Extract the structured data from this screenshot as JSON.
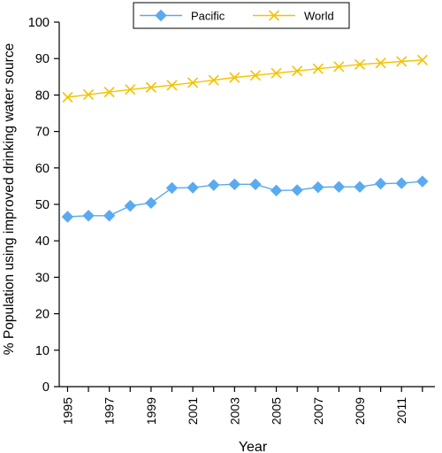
{
  "chart_data": {
    "type": "line",
    "title": "",
    "xlabel": "Year",
    "ylabel": "% Population using improved drinking water source",
    "xlim": [
      1994.6,
      2012.6
    ],
    "ylim": [
      0,
      100
    ],
    "yticks": [
      0,
      10,
      20,
      30,
      40,
      50,
      60,
      70,
      80,
      90,
      100
    ],
    "xticks": [
      1995,
      1997,
      1999,
      2001,
      2003,
      2005,
      2007,
      2009,
      2011
    ],
    "grid": false,
    "legend_position": "top-center",
    "x": [
      1995,
      1996,
      1997,
      1998,
      1999,
      2000,
      2001,
      2002,
      2003,
      2004,
      2005,
      2006,
      2007,
      2008,
      2009,
      2010,
      2011,
      2012
    ],
    "series": [
      {
        "name": "Pacific",
        "color": "#5aaaf0",
        "marker": "diamond",
        "values": [
          46.6,
          46.9,
          46.9,
          49.6,
          50.4,
          54.5,
          54.6,
          55.3,
          55.5,
          55.5,
          53.8,
          53.9,
          54.7,
          54.8,
          54.8,
          55.7,
          55.8,
          56.3
        ]
      },
      {
        "name": "World",
        "color": "#f5c200",
        "marker": "x",
        "values": [
          79.4,
          80.1,
          80.8,
          81.5,
          82.1,
          82.7,
          83.4,
          84.1,
          84.8,
          85.4,
          86.0,
          86.6,
          87.2,
          87.8,
          88.4,
          88.8,
          89.2,
          89.6
        ]
      }
    ]
  }
}
